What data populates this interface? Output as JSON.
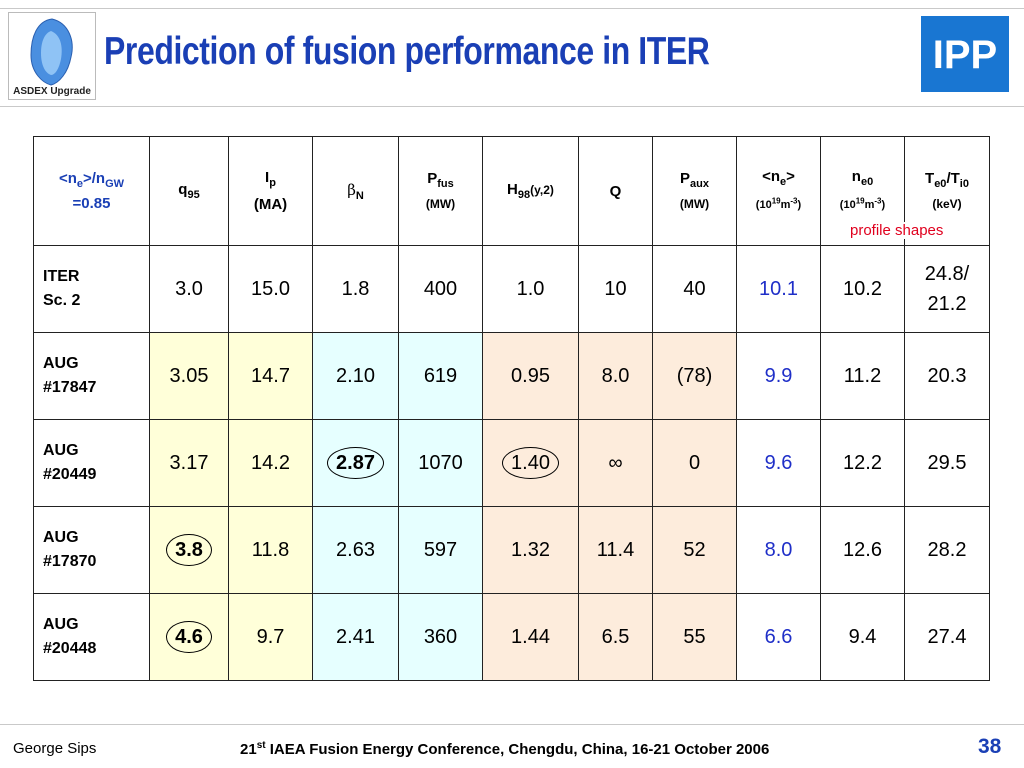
{
  "slide": {
    "title": "Prediction of  fusion performance in ITER",
    "left_logo_text": "ASDEX Upgrade",
    "right_logo_text": "IPP",
    "profile_note": "profile shapes"
  },
  "table": {
    "headers": {
      "col0_line1_a": "<n",
      "col0_line1_b": "e",
      "col0_line1_c": ">/n",
      "col0_line1_d": "GW",
      "col0_line2": "=0.85",
      "q_main": "q",
      "q_sub": "95",
      "ip_main": "I",
      "ip_sub": "p",
      "ip_unit": "(MA)",
      "beta_main": "β",
      "beta_sub": "N",
      "pfus_main": "P",
      "pfus_sub": "fus",
      "pfus_unit": "(MW)",
      "h_main": "H",
      "h_sub": "98",
      "h_suffix": "(y,2)",
      "q": "Q",
      "paux_main": "P",
      "paux_sub": "aux",
      "paux_unit": "(MW)",
      "ne_a": "<n",
      "ne_b": "e",
      "ne_c": ">",
      "ne_unit_a": "(10",
      "ne_unit_b": "19",
      "ne_unit_c": "m",
      "ne_unit_d": "-3",
      "ne_unit_e": ")",
      "ne0_main": "n",
      "ne0_sub": "e0",
      "ne0_unit_a": "(10",
      "ne0_unit_b": "19",
      "ne0_unit_c": "m",
      "ne0_unit_d": "-3",
      "ne0_unit_e": ")",
      "te_a": "T",
      "te_b": "e0",
      "te_c": "/T",
      "te_d": "i0",
      "te_unit": "(keV)"
    },
    "rows": [
      {
        "label1": "ITER",
        "label2": "Sc. 2",
        "q95": "3.0",
        "ip": "15.0",
        "betaN": "1.8",
        "pfus": "400",
        "h98": "1.0",
        "Q": "10",
        "paux": "40",
        "ne": "10.1",
        "ne0": "10.2",
        "te_line1": "24.8/",
        "te_line2": "21.2"
      },
      {
        "label1": "AUG",
        "label2": "#17847",
        "q95": "3.05",
        "ip": "14.7",
        "betaN": "2.10",
        "pfus": "619",
        "h98": "0.95",
        "Q": "8.0",
        "paux": "(78)",
        "ne": "9.9",
        "ne0": "11.2",
        "te": "20.3"
      },
      {
        "label1": "AUG",
        "label2": "#20449",
        "q95": "3.17",
        "ip": "14.2",
        "betaN": "2.87",
        "pfus": "1070",
        "h98": "1.40",
        "Q": "∞",
        "paux": "0",
        "ne": "9.6",
        "ne0": "12.2",
        "te": "29.5"
      },
      {
        "label1": "AUG",
        "label2": "#17870",
        "q95": "3.8",
        "ip": "11.8",
        "betaN": "2.63",
        "pfus": "597",
        "h98": "1.32",
        "Q": "11.4",
        "paux": "52",
        "ne": "8.0",
        "ne0": "12.6",
        "te": "28.2"
      },
      {
        "label1": "AUG",
        "label2": "#20448",
        "q95": "4.6",
        "ip": "9.7",
        "betaN": "2.41",
        "pfus": "360",
        "h98": "1.44",
        "Q": "6.5",
        "paux": "55",
        "ne": "6.6",
        "ne0": "9.4",
        "te": "27.4"
      }
    ]
  },
  "footer": {
    "author": "George Sips",
    "conf_num": "21",
    "conf_sup": "st",
    "conf_text": " IAEA Fusion Energy Conference, Chengdu, China, 16-21 October 2006",
    "page": "38"
  },
  "colors": {
    "title": "#1a3fb5",
    "value_blue": "#1f2fc8",
    "note_red": "#e0001e",
    "cell_yellow": "#ffffd9",
    "cell_cyan": "#e6ffff",
    "cell_peach": "#fdecdc"
  }
}
